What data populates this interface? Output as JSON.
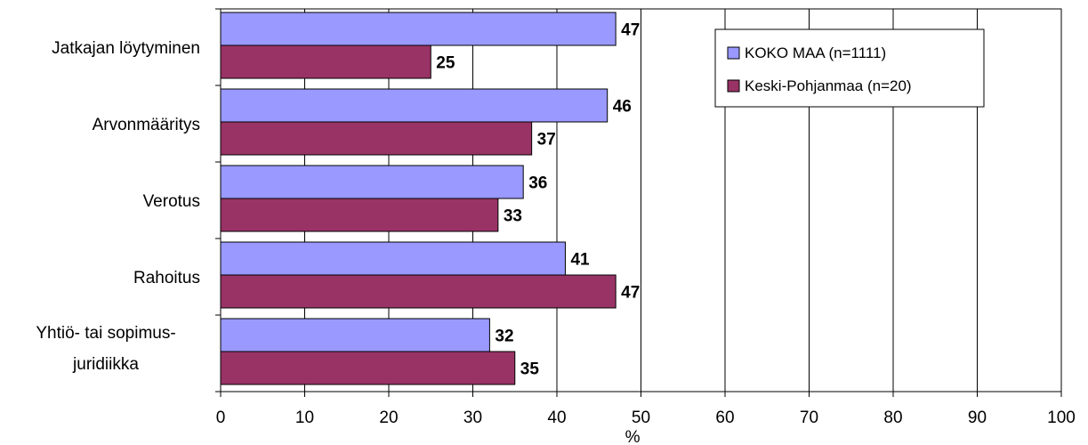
{
  "chart_data": {
    "type": "bar",
    "orientation": "horizontal",
    "categories": [
      "Jatkajan löytyminen",
      "Arvonmääritys",
      "Verotus",
      "Rahoitus",
      [
        "Yhtiö- tai sopimus-",
        "juridiikka"
      ]
    ],
    "series": [
      {
        "name": "KOKO MAA (n=1111)",
        "values": [
          47,
          46,
          36,
          41,
          32
        ],
        "color": "#9999ff"
      },
      {
        "name": "Keski-Pohjanmaa (n=20)",
        "values": [
          25,
          37,
          33,
          47,
          35
        ],
        "color": "#993366"
      }
    ],
    "xlabel": "%",
    "xlim": [
      0,
      100
    ],
    "xticks": [
      0,
      10,
      20,
      30,
      40,
      50,
      60,
      70,
      80,
      90,
      100
    ],
    "grid": "vertical",
    "legend_position": "top-right"
  }
}
